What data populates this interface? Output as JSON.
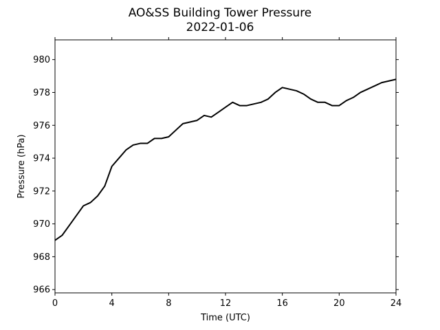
{
  "chart_data": {
    "type": "line",
    "title": "AO&SS Building Tower Pressure",
    "subtitle": "2022-01-06",
    "x_label": "Time (UTC)",
    "y_label": "Pressure (hPa)",
    "x": [
      0,
      0.5,
      1,
      1.5,
      2,
      2.5,
      3,
      3.5,
      4,
      4.5,
      5,
      5.5,
      6,
      6.5,
      7,
      7.5,
      8,
      8.5,
      9,
      9.5,
      10,
      10.5,
      11,
      11.5,
      12,
      12.5,
      13,
      13.5,
      14,
      14.5,
      15,
      15.5,
      16,
      16.5,
      17,
      17.5,
      18,
      18.5,
      19,
      19.5,
      20,
      20.5,
      21,
      21.5,
      22,
      22.5,
      23,
      23.5,
      24
    ],
    "series": [
      {
        "name": "Pressure",
        "color": "#000000",
        "values": [
          969.0,
          969.3,
          969.9,
          970.5,
          971.1,
          971.3,
          971.7,
          972.3,
          973.5,
          974.0,
          974.5,
          974.8,
          974.9,
          974.9,
          975.2,
          975.2,
          975.3,
          975.7,
          976.1,
          976.2,
          976.3,
          976.6,
          976.5,
          976.8,
          977.1,
          977.4,
          977.2,
          977.2,
          977.3,
          977.4,
          977.6,
          978.0,
          978.3,
          978.2,
          978.1,
          977.9,
          977.6,
          977.4,
          977.4,
          977.2,
          977.2,
          977.5,
          977.7,
          978.0,
          978.2,
          978.4,
          978.6,
          978.7,
          978.8
        ]
      }
    ],
    "xlim": [
      0,
      24
    ],
    "xticks": [
      0,
      4,
      8,
      12,
      16,
      20,
      24
    ],
    "ylim": [
      965.8,
      981.2
    ],
    "yticks": [
      966,
      968,
      970,
      972,
      974,
      976,
      978,
      980
    ]
  }
}
